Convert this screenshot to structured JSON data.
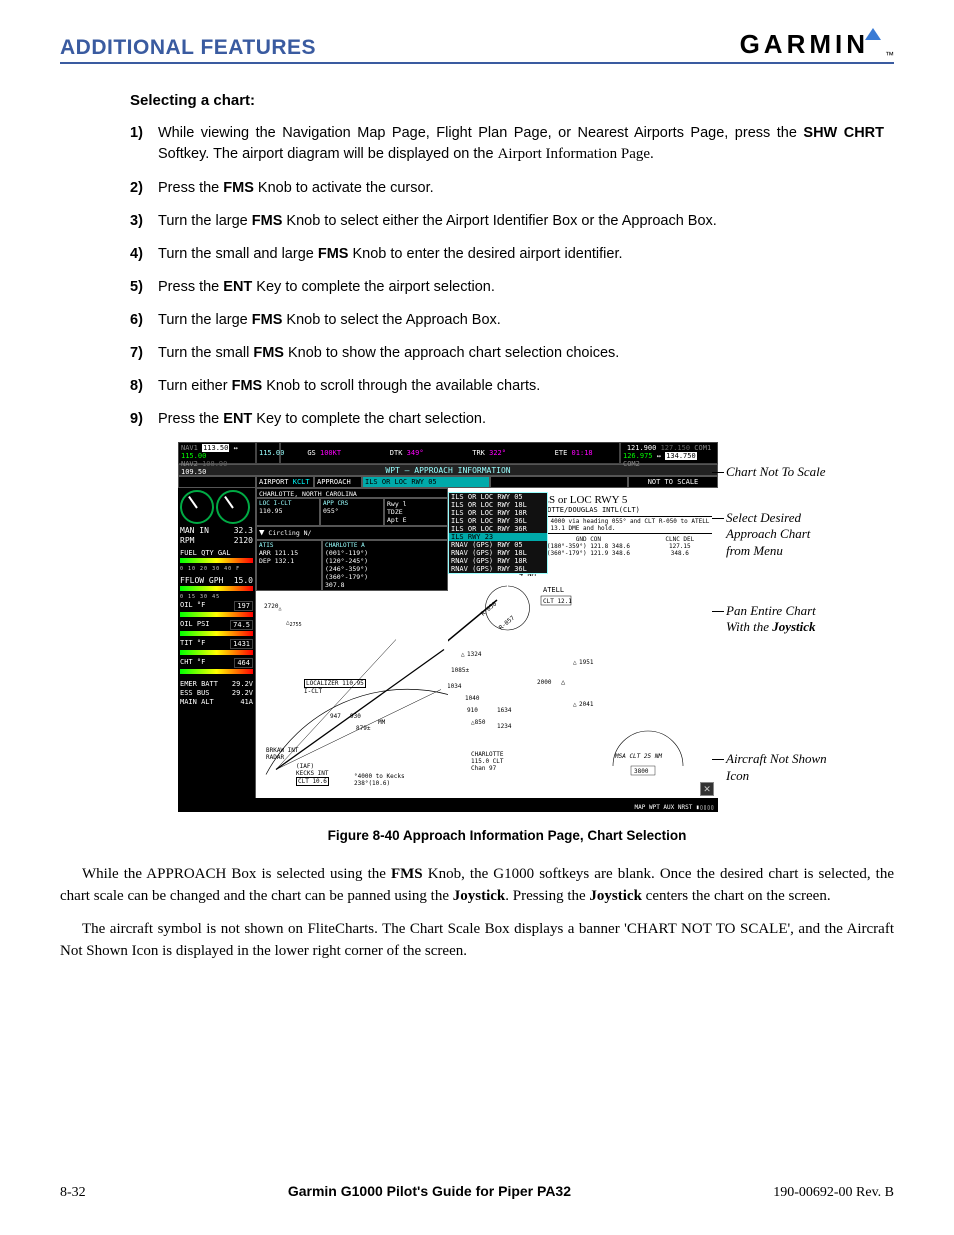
{
  "header": {
    "section_title": "ADDITIONAL FEATURES",
    "brand": "GARMIN"
  },
  "subhead": "Selecting a chart:",
  "steps": [
    {
      "n": "1)",
      "pre": "While viewing the Navigation Map Page, Flight Plan Page, or Nearest Airports Page, press the ",
      "b1": "SHW CHRT",
      "mid": " Softkey.  The airport diagram will be displayed on the ",
      "serif": "Airport Information Page."
    },
    {
      "n": "2)",
      "pre": "Press the ",
      "b1": "FMS",
      "post": " Knob to activate the cursor."
    },
    {
      "n": "3)",
      "pre": "Turn the large ",
      "b1": "FMS",
      "post": " Knob to select either the Airport Identifier Box or the Approach Box."
    },
    {
      "n": "4)",
      "pre": "Turn the small and large ",
      "b1": "FMS",
      "post": " Knob to enter the desired airport identifier."
    },
    {
      "n": "5)",
      "pre": "Press the ",
      "b1": "ENT",
      "post": " Key to complete the airport selection."
    },
    {
      "n": "6)",
      "pre": "Turn the large ",
      "b1": "FMS",
      "post": " Knob to select the Approach Box."
    },
    {
      "n": "7)",
      "pre": "Turn the small ",
      "b1": "FMS",
      "post": " Knob to show the approach chart selection choices."
    },
    {
      "n": "8)",
      "pre": "Turn either ",
      "b1": "FMS",
      "post": " Knob to scroll through the available charts."
    },
    {
      "n": "9)",
      "pre": "Press the ",
      "b1": "ENT",
      "post": " Key to complete the chart selection."
    }
  ],
  "mfd": {
    "nav1_a": "113.50",
    "nav1_b": "115.00",
    "nav2_a": "108.90",
    "nav2_b": "109.50",
    "gs": "GS",
    "gs_v": "100",
    "gs_u": "KT",
    "dtk": "DTK",
    "dtk_v": "349°",
    "trk": "TRK",
    "trk_v": "322°",
    "ete": "ETE",
    "ete_v": "01:18",
    "com1_a": "121.900",
    "com1_b": "127.150",
    "com2_a": "126.975",
    "com2_b": "134.750",
    "title": "WPT – APPROACH INFORMATION",
    "airport_lbl": "AIRPORT",
    "airport": "KCLT",
    "approach_lbl": "APPROACH",
    "approach_sel": "ILS OR LOC RWY 05",
    "scale": "NOT TO SCALE",
    "city": "CHARLOTTE, NORTH CAROLINA",
    "loc_box": {
      "h": "LOC I-CLT",
      "f": "110.95"
    },
    "appcrs": {
      "h": "APP CRS",
      "v": "055°"
    },
    "rwytdze": {
      "a": "Rwy l",
      "b": "TDZE",
      "c": "Apt E"
    },
    "circling": "Circling N/",
    "atis": {
      "h": "ATIS",
      "arr": "ARR 121.15",
      "dep": "DEP 132.1"
    },
    "charlotte_app": {
      "h": "CHARLOTTE A",
      "r1": "(001°-119°)",
      "r2": "(120°-245°)",
      "r3": "(246°-359°)",
      "r4": "(360°-179°)",
      "f": "307.8"
    },
    "approach_menu": [
      "ILS OR LOC RWY 05",
      "ILS OR LOC RWY 18L",
      "ILS OR LOC RWY 18R",
      "ILS OR LOC RWY 36L",
      "ILS OR LOC RWY 36R",
      "ILS RWY 23",
      "RNAV (GPS) RWY 05",
      "RNAV (GPS) RWY 18L",
      "RNAV (GPS) RWY 18R",
      "RNAV (GPS) RWY 36L"
    ],
    "menu_sel_idx": 5,
    "chart": {
      "title": "ILS or LOC RWY 5",
      "sub": "CHARLOTTE/DOUGLAS INTL(CLT)",
      "missed": "MISSED APPROACH: Climb to 4000 via heading 055° and CLT R-050 to ATELL 13.1 DME and hold.",
      "ower": "OWER",
      "ower_f1": "118.1  257.8",
      "ower_f2": "126.4  257.8",
      "gnd": "GND CON",
      "gnd_f1": "(180°-359°) 121.8  348.6",
      "gnd_f2": "(360°-179°) 121.9  348.6",
      "clnc": "CLNC DEL",
      "clnc_f1": "127.15",
      "clnc_f2": "348.6",
      "bzm": "110.8 BZM",
      "chan": "Chan 45",
      "atell": "ATELL",
      "atell_box": "CLT 12.1",
      "localizer": "LOCALIZER 110.95",
      "iclt": "I-CLT",
      "brkaw": "BRKAW INT",
      "radar": "RADAR",
      "iaf": "(IAF)",
      "kecks": "KECKS INT",
      "kecks_box": "CLT 10.6",
      "to_kecks": "°4000 to Kecks",
      "to_kecks2": "238°(10.6)",
      "charlotte_vor": "CHARLOTTE",
      "charlotte_f": "115.0 CLT",
      "chan97": "Chan 97",
      "msa": "MSA CLT 25 NM",
      "msa_v": "3800",
      "pts": {
        "2720": "2720",
        "2755": "2755",
        "1324": "1324",
        "1085": "1085±",
        "1034": "1034",
        "947": "947",
        "930": "930",
        "879": "879±",
        "1040": "1040",
        "910": "910",
        "850": "850",
        "1634": "1634",
        "1234": "1234",
        "2041": "2041",
        "1951": "1951",
        "2000": "2000",
        "nm4": "4 NM",
        "r050": "R-050",
        "r057": "R-057",
        "mm": "MM"
      }
    },
    "eis": {
      "man": "MAN IN",
      "man_v": "32.3",
      "rpm": "RPM",
      "rpm_v": "2120",
      "fuel": "FUEL QTY GAL",
      "fuel_ticks": "0 10 20 30 40 F",
      "fflow": "FFLOW GPH",
      "fflow_v": "15.0",
      "fflow_ticks": "0   15   30   45",
      "oilt": "OIL °F",
      "oilt_v": "197",
      "oilp": "OIL PSI",
      "oilp_v": "74.5",
      "tit": "TIT °F",
      "tit_v": "1431",
      "cht": "CHT °F",
      "cht_v": "464",
      "emer": "EMER BATT",
      "emer_v": "29.2V",
      "ess": "ESS BUS",
      "ess_v": "29.2V",
      "main": "MAIN ALT",
      "main_v": "41A"
    },
    "bottom": "MAP WPT AUX NRST ▮▯▯▯▯"
  },
  "annotations": {
    "a1": "Chart Not To Scale",
    "a2": "Select Desired Approach Chart from Menu",
    "a3_a": "Pan Entire Chart With the ",
    "a3_b": "Joystick",
    "a4": "Aircraft Not Shown Icon"
  },
  "caption": "Figure 8-40  Approach Information Page, Chart Selection",
  "para1": {
    "a": "While the APPROACH Box is selected using the ",
    "b": "FMS",
    "c": " Knob, the G1000 softkeys are blank.  Once the desired chart is selected, the chart scale can be changed and the chart can be panned using the ",
    "d": "Joystick",
    "e": ".  Pressing the ",
    "f": "Joystick",
    "g": " centers the chart on the screen."
  },
  "para2": "The aircraft symbol is not shown on FliteCharts.  The Chart Scale Box displays a banner 'CHART NOT TO SCALE', and the Aircraft Not Shown Icon is displayed in the lower right corner of the screen.",
  "footer": {
    "left": "8-32",
    "mid": "Garmin G1000 Pilot's Guide for Piper PA32",
    "right": "190-00692-00  Rev. B"
  }
}
